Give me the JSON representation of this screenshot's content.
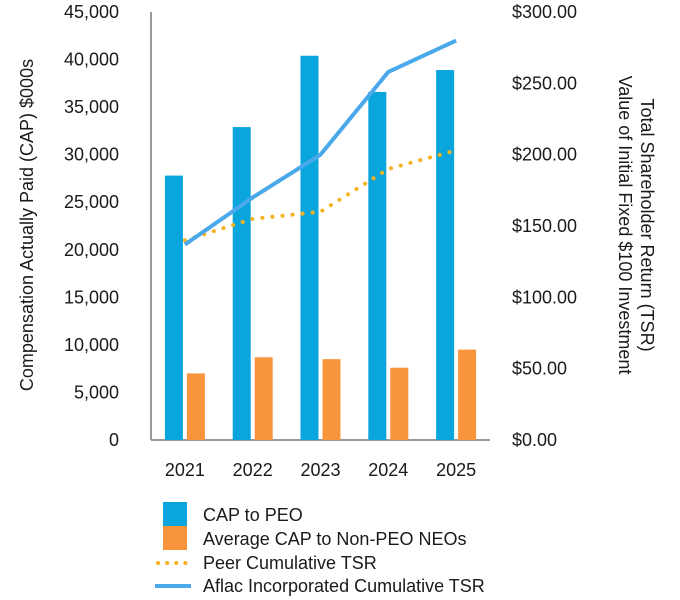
{
  "chart_data": {
    "type": "bar",
    "categories": [
      "2021",
      "2022",
      "2023",
      "2024",
      "2025"
    ],
    "y_left": {
      "label": "Compensation Actually Paid (CAP) $000s",
      "range": [
        0,
        45000
      ],
      "ticks": [
        "0",
        "5,000",
        "10,000",
        "15,000",
        "20,000",
        "25,000",
        "30,000",
        "35,000",
        "40,000",
        "45,000"
      ]
    },
    "y_right": {
      "label_line1": "Total Shareholder Return (TSR)",
      "label_line2": "Value of Initial Fixed $100 Investment",
      "range": [
        0,
        300
      ],
      "ticks": [
        "$0.00",
        "$50.00",
        "$100.00",
        "$150.00",
        "$200.00",
        "$250.00",
        "$300.00"
      ]
    },
    "series": [
      {
        "name": "CAP to PEO",
        "kind": "bar",
        "axis": "left",
        "color": "#0aa5dd",
        "values": [
          27800,
          32900,
          40400,
          36600,
          38900
        ]
      },
      {
        "name": "Average CAP to Non-PEO NEOs",
        "kind": "bar",
        "axis": "left",
        "color": "#f7943c",
        "values": [
          7000,
          8700,
          8500,
          7600,
          9500
        ]
      },
      {
        "name": "Peer Cumulative TSR",
        "kind": "line-dotted",
        "axis": "right",
        "color": "#f4b223",
        "values": [
          140,
          155,
          160,
          190,
          203
        ]
      },
      {
        "name": "Aflac Incorporated Cumulative TSR",
        "kind": "line",
        "axis": "right",
        "color": "#4aa9ea",
        "values": [
          137,
          170,
          200,
          258,
          280
        ]
      }
    ],
    "legend_position": "bottom",
    "grid": false
  }
}
